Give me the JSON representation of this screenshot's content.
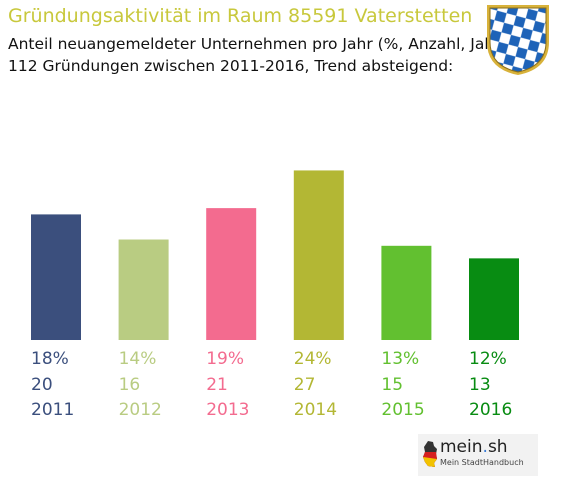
{
  "header": {
    "title": "Gründungsaktivität im Raum 85591 Vaterstetten",
    "subtitle_line1": "Anteil neuangemeldeter Unternehmen pro Jahr (%, Anzahl, Jahr)",
    "subtitle_line2": "112 Gründungen zwischen 2011-2016, Trend absteigend:"
  },
  "crest": {
    "icon": "bavarian-crest-icon",
    "colors": [
      "#1e63b8",
      "#ffffff",
      "#d8b23a"
    ]
  },
  "chart_data": {
    "type": "bar",
    "categories": [
      "2011",
      "2012",
      "2013",
      "2014",
      "2015",
      "2016"
    ],
    "values": [
      20,
      16,
      21,
      27,
      15,
      13
    ],
    "percent_labels": [
      "18%",
      "14%",
      "19%",
      "24%",
      "13%",
      "12%"
    ],
    "count_labels": [
      "20",
      "16",
      "21",
      "27",
      "15",
      "13"
    ],
    "colors": [
      "#3b4f7d",
      "#b9cc82",
      "#f36b8f",
      "#b3b734",
      "#62c030",
      "#088c12"
    ],
    "ylim": [
      0,
      30
    ],
    "grid": false,
    "legend": "none"
  },
  "logo": {
    "name_main": "mein",
    "name_dot": ".",
    "name_tld": "sh",
    "tagline": "Mein StadtHandbuch",
    "icon": "germany-map-icon"
  }
}
